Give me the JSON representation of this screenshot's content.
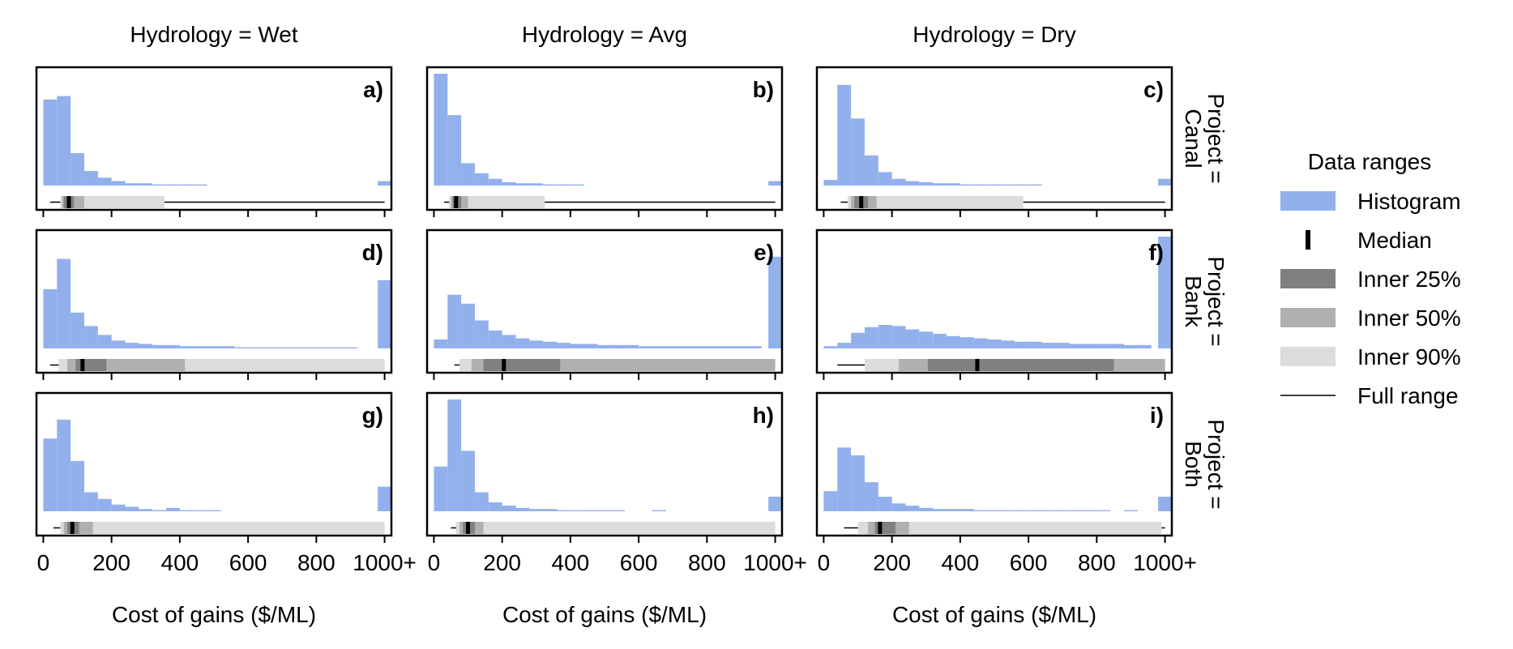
{
  "figure": {
    "column_titles": [
      "Hydrology = Wet",
      "Hydrology = Avg",
      "Hydrology = Dry"
    ],
    "row_titles": [
      [
        "Project =",
        "Canal"
      ],
      [
        "Project =",
        "Bank"
      ],
      [
        "Project =",
        "Both"
      ]
    ],
    "x_tick_labels": [
      "0",
      "200",
      "400",
      "600",
      "800",
      "1000+"
    ],
    "x_tick_values": [
      0,
      200,
      400,
      600,
      800,
      1000
    ],
    "xlabel": "Cost of gains ($/ML)"
  },
  "legend": {
    "title": "Data ranges",
    "items": [
      {
        "key": "histogram",
        "label": "Histogram",
        "color": "#92b0ec"
      },
      {
        "key": "median",
        "label": "Median",
        "color": "#000000"
      },
      {
        "key": "inner25",
        "label": "Inner 25%",
        "color": "#808080"
      },
      {
        "key": "inner50",
        "label": "Inner 50%",
        "color": "#b0b0b0"
      },
      {
        "key": "inner90",
        "label": "Inner 90%",
        "color": "#dcdcdc"
      },
      {
        "key": "full",
        "label": "Full range",
        "color": "#000000"
      }
    ]
  },
  "chart_data": {
    "type": "bar",
    "bin_width": 40,
    "xlim": [
      -20,
      1020
    ],
    "colors": {
      "histogram": "#92b0ec",
      "inner90": "#dcdcdc",
      "inner50": "#b0b0b0",
      "inner25": "#808080",
      "median": "#000000",
      "full": "#000000"
    },
    "panels": [
      {
        "label": "a)",
        "row": 0,
        "col": 0,
        "hist": [
          [
            20,
            0.77
          ],
          [
            60,
            0.8
          ],
          [
            100,
            0.29
          ],
          [
            140,
            0.13
          ],
          [
            180,
            0.07
          ],
          [
            220,
            0.04
          ],
          [
            260,
            0.02
          ],
          [
            300,
            0.02
          ],
          [
            340,
            0.01
          ],
          [
            380,
            0.01
          ],
          [
            420,
            0.01
          ],
          [
            460,
            0.01
          ],
          [
            500,
            0
          ],
          [
            540,
            0
          ],
          [
            580,
            0
          ],
          [
            620,
            0
          ],
          [
            660,
            0
          ],
          [
            700,
            0
          ],
          [
            740,
            0
          ],
          [
            780,
            0
          ],
          [
            820,
            0
          ],
          [
            860,
            0
          ],
          [
            900,
            0
          ],
          [
            940,
            0
          ],
          [
            1000,
            0.04
          ]
        ],
        "full": [
          20,
          1000
        ],
        "p90": [
          50,
          355
        ],
        "p50": [
          55,
          120
        ],
        "p25": [
          60,
          90
        ],
        "median": 75
      },
      {
        "label": "b)",
        "row": 0,
        "col": 1,
        "hist": [
          [
            20,
            1.0
          ],
          [
            60,
            0.63
          ],
          [
            100,
            0.2
          ],
          [
            140,
            0.11
          ],
          [
            180,
            0.06
          ],
          [
            220,
            0.03
          ],
          [
            260,
            0.02
          ],
          [
            300,
            0.02
          ],
          [
            340,
            0.01
          ],
          [
            380,
            0.01
          ],
          [
            420,
            0.01
          ],
          [
            460,
            0
          ],
          [
            500,
            0
          ],
          [
            540,
            0
          ],
          [
            580,
            0
          ],
          [
            620,
            0
          ],
          [
            660,
            0
          ],
          [
            700,
            0
          ],
          [
            740,
            0
          ],
          [
            780,
            0
          ],
          [
            820,
            0
          ],
          [
            860,
            0
          ],
          [
            900,
            0
          ],
          [
            940,
            0
          ],
          [
            1000,
            0.04
          ]
        ],
        "full": [
          30,
          1000
        ],
        "p90": [
          45,
          325
        ],
        "p50": [
          50,
          100
        ],
        "p25": [
          55,
          80
        ],
        "median": 65
      },
      {
        "label": "c)",
        "row": 0,
        "col": 2,
        "hist": [
          [
            20,
            0.05
          ],
          [
            60,
            0.9
          ],
          [
            100,
            0.6
          ],
          [
            140,
            0.27
          ],
          [
            180,
            0.12
          ],
          [
            220,
            0.06
          ],
          [
            260,
            0.04
          ],
          [
            300,
            0.03
          ],
          [
            340,
            0.02
          ],
          [
            380,
            0.02
          ],
          [
            420,
            0.01
          ],
          [
            460,
            0.01
          ],
          [
            500,
            0.01
          ],
          [
            540,
            0.01
          ],
          [
            580,
            0.01
          ],
          [
            620,
            0.01
          ],
          [
            660,
            0
          ],
          [
            700,
            0
          ],
          [
            740,
            0
          ],
          [
            780,
            0
          ],
          [
            820,
            0
          ],
          [
            860,
            0
          ],
          [
            900,
            0
          ],
          [
            940,
            0
          ],
          [
            1000,
            0.06
          ]
        ],
        "full": [
          50,
          1000
        ],
        "p90": [
          70,
          585
        ],
        "p50": [
          80,
          155
        ],
        "p25": [
          90,
          130
        ],
        "median": 110
      },
      {
        "label": "d)",
        "row": 1,
        "col": 0,
        "hist": [
          [
            20,
            0.53
          ],
          [
            60,
            0.8
          ],
          [
            100,
            0.32
          ],
          [
            140,
            0.2
          ],
          [
            180,
            0.12
          ],
          [
            220,
            0.07
          ],
          [
            260,
            0.05
          ],
          [
            300,
            0.04
          ],
          [
            340,
            0.03
          ],
          [
            380,
            0.03
          ],
          [
            420,
            0.02
          ],
          [
            460,
            0.02
          ],
          [
            500,
            0.02
          ],
          [
            540,
            0.02
          ],
          [
            580,
            0.01
          ],
          [
            620,
            0.01
          ],
          [
            660,
            0.01
          ],
          [
            700,
            0.01
          ],
          [
            740,
            0.01
          ],
          [
            780,
            0.01
          ],
          [
            820,
            0.01
          ],
          [
            860,
            0.01
          ],
          [
            900,
            0.01
          ],
          [
            940,
            0
          ],
          [
            1000,
            0.61
          ]
        ],
        "full": [
          20,
          1000
        ],
        "p90": [
          45,
          1000
        ],
        "p50": [
          70,
          415
        ],
        "p25": [
          95,
          185
        ],
        "median": 115
      },
      {
        "label": "e)",
        "row": 1,
        "col": 1,
        "hist": [
          [
            20,
            0.08
          ],
          [
            60,
            0.48
          ],
          [
            100,
            0.4
          ],
          [
            140,
            0.25
          ],
          [
            180,
            0.16
          ],
          [
            220,
            0.12
          ],
          [
            260,
            0.09
          ],
          [
            300,
            0.07
          ],
          [
            340,
            0.06
          ],
          [
            380,
            0.05
          ],
          [
            420,
            0.04
          ],
          [
            460,
            0.04
          ],
          [
            500,
            0.03
          ],
          [
            540,
            0.03
          ],
          [
            580,
            0.03
          ],
          [
            620,
            0.02
          ],
          [
            660,
            0.02
          ],
          [
            700,
            0.02
          ],
          [
            740,
            0.02
          ],
          [
            780,
            0.02
          ],
          [
            820,
            0.02
          ],
          [
            860,
            0.02
          ],
          [
            900,
            0.02
          ],
          [
            940,
            0.02
          ],
          [
            1000,
            0.82
          ]
        ],
        "full": [
          60,
          1000
        ],
        "p90": [
          75,
          1000
        ],
        "p50": [
          110,
          1000
        ],
        "p25": [
          145,
          370
        ],
        "median": 205
      },
      {
        "label": "f)",
        "row": 1,
        "col": 2,
        "hist": [
          [
            20,
            0.02
          ],
          [
            60,
            0.05
          ],
          [
            100,
            0.14
          ],
          [
            140,
            0.19
          ],
          [
            180,
            0.21
          ],
          [
            220,
            0.2
          ],
          [
            260,
            0.17
          ],
          [
            300,
            0.15
          ],
          [
            340,
            0.13
          ],
          [
            380,
            0.11
          ],
          [
            420,
            0.1
          ],
          [
            460,
            0.09
          ],
          [
            500,
            0.08
          ],
          [
            540,
            0.07
          ],
          [
            580,
            0.06
          ],
          [
            620,
            0.06
          ],
          [
            660,
            0.05
          ],
          [
            700,
            0.05
          ],
          [
            740,
            0.04
          ],
          [
            780,
            0.04
          ],
          [
            820,
            0.04
          ],
          [
            860,
            0.04
          ],
          [
            900,
            0.03
          ],
          [
            940,
            0.03
          ],
          [
            1000,
            1.0
          ]
        ],
        "full": [
          40,
          1000
        ],
        "p90": [
          120,
          1000
        ],
        "p50": [
          220,
          1000
        ],
        "p25": [
          305,
          850
        ],
        "median": 450
      },
      {
        "label": "g)",
        "row": 2,
        "col": 0,
        "hist": [
          [
            20,
            0.65
          ],
          [
            60,
            0.82
          ],
          [
            100,
            0.45
          ],
          [
            140,
            0.17
          ],
          [
            180,
            0.11
          ],
          [
            220,
            0.06
          ],
          [
            260,
            0.04
          ],
          [
            300,
            0.02
          ],
          [
            340,
            0.01
          ],
          [
            380,
            0.03
          ],
          [
            420,
            0.01
          ],
          [
            460,
            0.01
          ],
          [
            500,
            0.01
          ],
          [
            540,
            0
          ],
          [
            580,
            0
          ],
          [
            620,
            0
          ],
          [
            660,
            0
          ],
          [
            700,
            0
          ],
          [
            740,
            0
          ],
          [
            780,
            0
          ],
          [
            820,
            0
          ],
          [
            860,
            0
          ],
          [
            900,
            0
          ],
          [
            940,
            0
          ],
          [
            1000,
            0.22
          ]
        ],
        "full": [
          30,
          1000
        ],
        "p90": [
          50,
          1000
        ],
        "p50": [
          60,
          145
        ],
        "p25": [
          70,
          105
        ],
        "median": 85
      },
      {
        "label": "h)",
        "row": 2,
        "col": 1,
        "hist": [
          [
            20,
            0.4
          ],
          [
            60,
            1.0
          ],
          [
            100,
            0.54
          ],
          [
            140,
            0.17
          ],
          [
            180,
            0.08
          ],
          [
            220,
            0.05
          ],
          [
            260,
            0.03
          ],
          [
            300,
            0.02
          ],
          [
            340,
            0.02
          ],
          [
            380,
            0.01
          ],
          [
            420,
            0.01
          ],
          [
            460,
            0.01
          ],
          [
            500,
            0.01
          ],
          [
            540,
            0.01
          ],
          [
            580,
            0
          ],
          [
            620,
            0
          ],
          [
            660,
            0.01
          ],
          [
            700,
            0
          ],
          [
            740,
            0
          ],
          [
            780,
            0
          ],
          [
            820,
            0
          ],
          [
            860,
            0
          ],
          [
            900,
            0
          ],
          [
            940,
            0
          ],
          [
            1000,
            0.13
          ]
        ],
        "full": [
          50,
          1000
        ],
        "p90": [
          65,
          1000
        ],
        "p50": [
          75,
          145
        ],
        "p25": [
          85,
          120
        ],
        "median": 100
      },
      {
        "label": "i)",
        "row": 2,
        "col": 2,
        "hist": [
          [
            20,
            0.18
          ],
          [
            60,
            0.57
          ],
          [
            100,
            0.5
          ],
          [
            140,
            0.26
          ],
          [
            180,
            0.13
          ],
          [
            220,
            0.07
          ],
          [
            260,
            0.05
          ],
          [
            300,
            0.03
          ],
          [
            340,
            0.02
          ],
          [
            380,
            0.02
          ],
          [
            420,
            0.02
          ],
          [
            460,
            0.01
          ],
          [
            500,
            0.01
          ],
          [
            540,
            0.01
          ],
          [
            580,
            0.01
          ],
          [
            620,
            0.01
          ],
          [
            660,
            0.01
          ],
          [
            700,
            0.01
          ],
          [
            740,
            0.01
          ],
          [
            780,
            0.01
          ],
          [
            820,
            0.01
          ],
          [
            860,
            0
          ],
          [
            900,
            0.01
          ],
          [
            940,
            0
          ],
          [
            1000,
            0.13
          ]
        ],
        "full": [
          60,
          1000
        ],
        "p90": [
          100,
          990
        ],
        "p50": [
          130,
          250
        ],
        "p25": [
          150,
          210
        ],
        "median": 165
      }
    ]
  }
}
